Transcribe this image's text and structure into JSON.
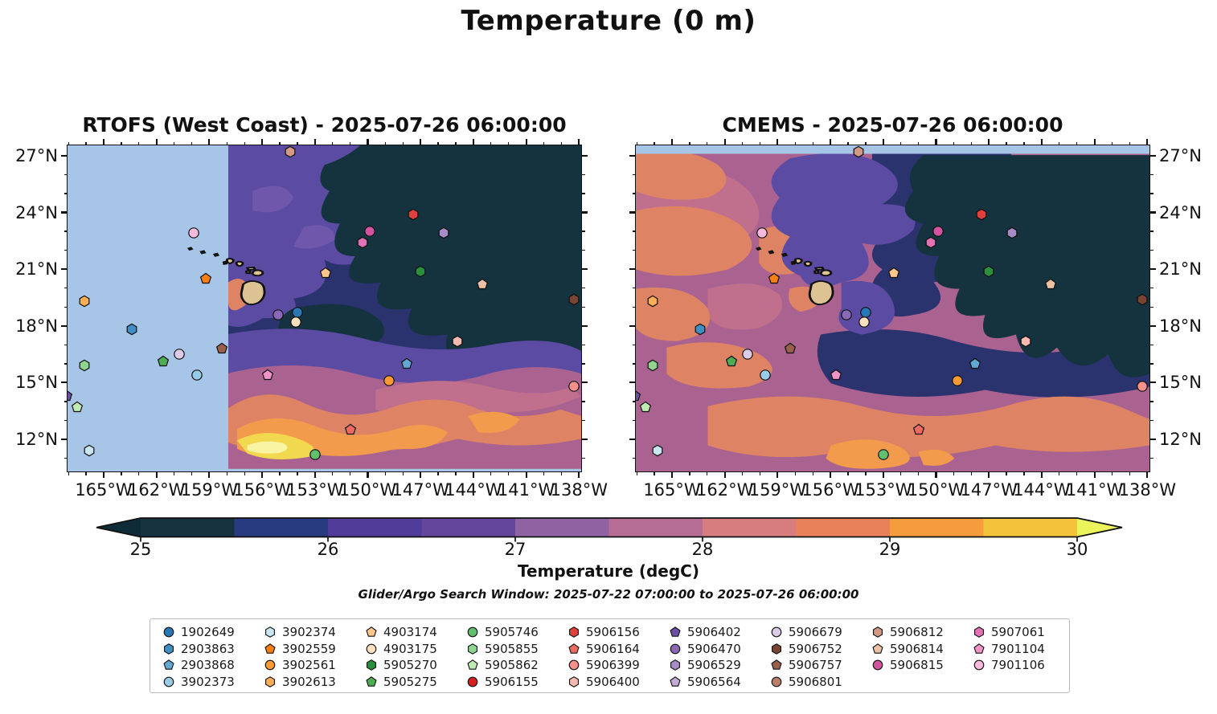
{
  "title": "Temperature (0 m)",
  "panels": [
    {
      "name": "RTOFS",
      "title": "RTOFS (West Coast) - 2025-07-26 06:00:00"
    },
    {
      "name": "CMEMS",
      "title": "CMEMS - 2025-07-26 06:00:00"
    }
  ],
  "axes": {
    "x_major_ticks": [
      165,
      162,
      159,
      156,
      153,
      150,
      147,
      144,
      141,
      138
    ],
    "x_tick_labels": [
      "165°W",
      "162°W",
      "159°W",
      "156°W",
      "153°W",
      "150°W",
      "147°W",
      "144°W",
      "141°W",
      "138°W"
    ],
    "y_major_ticks": [
      12,
      15,
      18,
      21,
      24,
      27
    ],
    "y_tick_labels": [
      "12°N",
      "15°N",
      "18°N",
      "21°N",
      "24°N",
      "27°N"
    ],
    "lon_range_w": [
      167.05,
      137.9
    ],
    "lat_range_n": [
      10.3,
      27.55
    ]
  },
  "colorbar": {
    "label": "Temperature (degC)",
    "tick_values": [
      25,
      26,
      27,
      28,
      29,
      30
    ],
    "segments": [
      {
        "from": 25.0,
        "to": 25.5,
        "color": "#17333f"
      },
      {
        "from": 25.5,
        "to": 26.0,
        "color": "#283a80"
      },
      {
        "from": 26.0,
        "to": 26.5,
        "color": "#4f3d99"
      },
      {
        "from": 26.5,
        "to": 27.0,
        "color": "#64479d"
      },
      {
        "from": 27.0,
        "to": 27.5,
        "color": "#8f62a1"
      },
      {
        "from": 27.5,
        "to": 28.0,
        "color": "#b56d94"
      },
      {
        "from": 28.0,
        "to": 28.5,
        "color": "#d87d7f"
      },
      {
        "from": 28.5,
        "to": 29.0,
        "color": "#e8815a"
      },
      {
        "from": 29.0,
        "to": 29.5,
        "color": "#f59d3d"
      },
      {
        "from": 29.5,
        "to": 30.0,
        "color": "#f5c23c"
      }
    ],
    "under_arrow_color": "#0e2c37",
    "over_arrow_color": "#ecf45c"
  },
  "footnote": "Glider/Argo Search Window: 2025-07-22 07:00:00 to 2025-07-26 06:00:00",
  "map_colors": {
    "no_data": "#a6c5e7",
    "land": "#ddc294",
    "coldest": "#14333f",
    "navy": "#2b336e",
    "purple": "#5b4ba3",
    "purple_light": "#6f58ab",
    "mauve": "#aa6390",
    "rose": "#c0708d",
    "salmon": "#de8465",
    "orange": "#f29b4d",
    "yellow": "#f1d84e",
    "pale_yellow": "#f9f3a4"
  },
  "floats": {
    "1902649": {
      "shape": "circle",
      "color": "#2878b5"
    },
    "2903863": {
      "shape": "hexagon",
      "color": "#3f8fc5"
    },
    "2903868": {
      "shape": "pentagon",
      "color": "#62a8d2"
    },
    "3902373": {
      "shape": "circle",
      "color": "#97cbe7"
    },
    "3902374": {
      "shape": "hexagon",
      "color": "#cbe6f3"
    },
    "3902559": {
      "shape": "pentagon",
      "color": "#f87f13"
    },
    "3902561": {
      "shape": "circle",
      "color": "#fb9a32"
    },
    "3902613": {
      "shape": "hexagon",
      "color": "#fdae56"
    },
    "4903174": {
      "shape": "pentagon",
      "color": "#fdc78c"
    },
    "4903175": {
      "shape": "circle",
      "color": "#fee2c0"
    },
    "5905270": {
      "shape": "hexagon",
      "color": "#2c8f3e"
    },
    "5905275": {
      "shape": "pentagon",
      "color": "#4cad53"
    },
    "5905746": {
      "shape": "circle",
      "color": "#61c06d"
    },
    "5905855": {
      "shape": "hexagon",
      "color": "#90d492"
    },
    "5905862": {
      "shape": "pentagon",
      "color": "#bfeab4"
    },
    "5906155": {
      "shape": "circle",
      "color": "#d6201e"
    },
    "5906156": {
      "shape": "hexagon",
      "color": "#e13f3d"
    },
    "5906164": {
      "shape": "pentagon",
      "color": "#ec6a5f"
    },
    "5906399": {
      "shape": "circle",
      "color": "#f69289"
    },
    "5906400": {
      "shape": "hexagon",
      "color": "#fab9b1"
    },
    "5906402": {
      "shape": "pentagon",
      "color": "#6a4fa3"
    },
    "5906470": {
      "shape": "circle",
      "color": "#8968b5"
    },
    "5906529": {
      "shape": "hexagon",
      "color": "#a88cc6"
    },
    "5906564": {
      "shape": "pentagon",
      "color": "#c3abd8"
    },
    "5906679": {
      "shape": "circle",
      "color": "#ddcbea"
    },
    "5906752": {
      "shape": "hexagon",
      "color": "#7a4433"
    },
    "5906757": {
      "shape": "pentagon",
      "color": "#99614b"
    },
    "5906801": {
      "shape": "circle",
      "color": "#b97f67"
    },
    "5906812": {
      "shape": "hexagon",
      "color": "#d29a84"
    },
    "5906814": {
      "shape": "pentagon",
      "color": "#ecc0a4"
    },
    "5906815": {
      "shape": "circle",
      "color": "#d4539f"
    },
    "5907061": {
      "shape": "hexagon",
      "color": "#e272b4"
    },
    "7901104": {
      "shape": "pentagon",
      "color": "#ef94c8"
    },
    "7901106": {
      "shape": "circle",
      "color": "#f8badd"
    }
  },
  "legend_columns": [
    [
      "1902649",
      "2903863",
      "2903868",
      "3902373"
    ],
    [
      "3902374",
      "3902559",
      "3902561",
      "3902613"
    ],
    [
      "4903174",
      "4903175",
      "5905270",
      "5905275"
    ],
    [
      "5905746",
      "5905855",
      "5905862",
      "5906155"
    ],
    [
      "5906156",
      "5906164",
      "5906399",
      "5906400"
    ],
    [
      "5906402",
      "5906470",
      "5906529",
      "5906564"
    ],
    [
      "5906679",
      "5906752",
      "5906757",
      "5906801"
    ],
    [
      "5906812",
      "5906814",
      "5906815"
    ],
    [
      "5907061",
      "7901104",
      "7901106"
    ]
  ],
  "float_positions": [
    {
      "id": "5906812",
      "lon_w": 154.4,
      "lat_n": 27.2
    },
    {
      "id": "5906156",
      "lon_w": 147.4,
      "lat_n": 23.9
    },
    {
      "id": "5906815",
      "lon_w": 149.9,
      "lat_n": 23.0
    },
    {
      "id": "5907061",
      "lon_w": 150.3,
      "lat_n": 22.4
    },
    {
      "id": "5906529",
      "lon_w": 145.7,
      "lat_n": 22.9
    },
    {
      "id": "7901106",
      "lon_w": 159.9,
      "lat_n": 22.9
    },
    {
      "id": "3902559",
      "lon_w": 159.2,
      "lat_n": 20.5
    },
    {
      "id": "4903174",
      "lon_w": 152.4,
      "lat_n": 20.8
    },
    {
      "id": "5905270",
      "lon_w": 147.0,
      "lat_n": 20.9
    },
    {
      "id": "5906814",
      "lon_w": 143.5,
      "lat_n": 20.2
    },
    {
      "id": "3902613",
      "lon_w": 166.1,
      "lat_n": 19.3
    },
    {
      "id": "5906752",
      "lon_w": 138.3,
      "lat_n": 19.4
    },
    {
      "id": "5906470",
      "lon_w": 155.1,
      "lat_n": 18.6
    },
    {
      "id": "1902649",
      "lon_w": 154.0,
      "lat_n": 18.7
    },
    {
      "id": "4903175",
      "lon_w": 154.1,
      "lat_n": 18.2
    },
    {
      "id": "2903863",
      "lon_w": 163.4,
      "lat_n": 17.8
    },
    {
      "id": "5906400",
      "lon_w": 144.9,
      "lat_n": 17.2
    },
    {
      "id": "5906757",
      "lon_w": 158.3,
      "lat_n": 16.8
    },
    {
      "id": "5906679",
      "lon_w": 160.7,
      "lat_n": 16.5
    },
    {
      "id": "5905275",
      "lon_w": 161.6,
      "lat_n": 16.1
    },
    {
      "id": "5905855",
      "lon_w": 166.1,
      "lat_n": 15.9
    },
    {
      "id": "2903868",
      "lon_w": 147.8,
      "lat_n": 16.0
    },
    {
      "id": "3902373",
      "lon_w": 159.7,
      "lat_n": 15.4
    },
    {
      "id": "7901104",
      "lon_w": 155.7,
      "lat_n": 15.4
    },
    {
      "id": "3902561",
      "lon_w": 148.8,
      "lat_n": 15.1
    },
    {
      "id": "5906399",
      "lon_w": 138.3,
      "lat_n": 14.8
    },
    {
      "id": "5906402",
      "lon_w": 167.1,
      "lat_n": 14.3
    },
    {
      "id": "5905862",
      "lon_w": 166.5,
      "lat_n": 13.7
    },
    {
      "id": "5906164",
      "lon_w": 151.0,
      "lat_n": 12.5
    },
    {
      "id": "5905746",
      "lon_w": 153.0,
      "lat_n": 11.2
    },
    {
      "id": "3902374",
      "lon_w": 165.8,
      "lat_n": 11.4
    }
  ],
  "chart_data": {
    "type": "heatmap",
    "title": "Temperature (0 m)",
    "subplots": [
      "RTOFS (West Coast) - 2025-07-26 06:00:00",
      "CMEMS - 2025-07-26 06:00:00"
    ],
    "xlabel_ticks": [
      "165°W",
      "162°W",
      "159°W",
      "156°W",
      "153°W",
      "150°W",
      "147°W",
      "144°W",
      "141°W",
      "138°W"
    ],
    "ylabel_ticks": [
      "12°N",
      "15°N",
      "18°N",
      "21°N",
      "24°N",
      "27°N"
    ],
    "colorbar_label": "Temperature (degC)",
    "colorbar_range": [
      25,
      30
    ],
    "colorbar_extends": "both",
    "annotation": "Glider/Argo Search Window: 2025-07-22 07:00:00 to 2025-07-26 06:00:00",
    "notes": "Sea-surface temperature contour maps around Hawaii; RTOFS panel has a light-blue no-data region west of ~157.8W; CMEMS panel has a light-blue no-data strip above 27N; 31 Argo float markers plotted identically on both panels"
  }
}
